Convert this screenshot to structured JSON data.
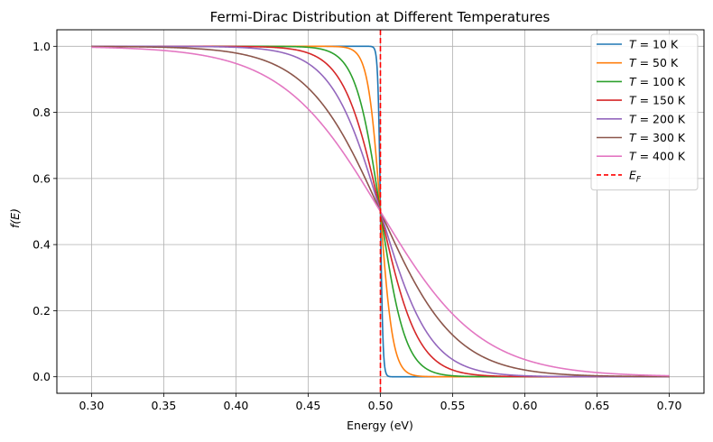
{
  "chart_data": {
    "type": "line",
    "title": "Fermi-Dirac Distribution at Different Temperatures",
    "xlabel": "Energy (eV)",
    "ylabel": "f(E)",
    "xlim": [
      0.276,
      0.724
    ],
    "ylim": [
      -0.05,
      1.05
    ],
    "xticks": [
      0.3,
      0.35,
      0.4,
      0.45,
      0.5,
      0.55,
      0.6,
      0.65,
      0.7
    ],
    "xtick_labels": [
      "0.30",
      "0.35",
      "0.40",
      "0.45",
      "0.50",
      "0.55",
      "0.60",
      "0.65",
      "0.70"
    ],
    "yticks": [
      0.0,
      0.2,
      0.4,
      0.6,
      0.8,
      1.0
    ],
    "ytick_labels": [
      "0.0",
      "0.2",
      "0.4",
      "0.6",
      "0.8",
      "1.0"
    ],
    "grid": true,
    "legend_position": "top-right",
    "energy_range_eV": [
      0.3,
      0.7
    ],
    "fermi_energy_eV": 0.5,
    "series": [
      {
        "name": "T = 10 K",
        "temperature_K": 10,
        "color": "#1f77b4"
      },
      {
        "name": "T = 50 K",
        "temperature_K": 50,
        "color": "#ff7f0e"
      },
      {
        "name": "T = 100 K",
        "temperature_K": 100,
        "color": "#2ca02c"
      },
      {
        "name": "T = 150 K",
        "temperature_K": 150,
        "color": "#d62728"
      },
      {
        "name": "T = 200 K",
        "temperature_K": 200,
        "color": "#9467bd"
      },
      {
        "name": "T = 300 K",
        "temperature_K": 300,
        "color": "#8c564b"
      },
      {
        "name": "T = 400 K",
        "temperature_K": 400,
        "color": "#e377c2"
      }
    ],
    "reference_line": {
      "name": "E_F",
      "x": 0.5,
      "color": "#ff0000",
      "style": "dashed"
    }
  }
}
